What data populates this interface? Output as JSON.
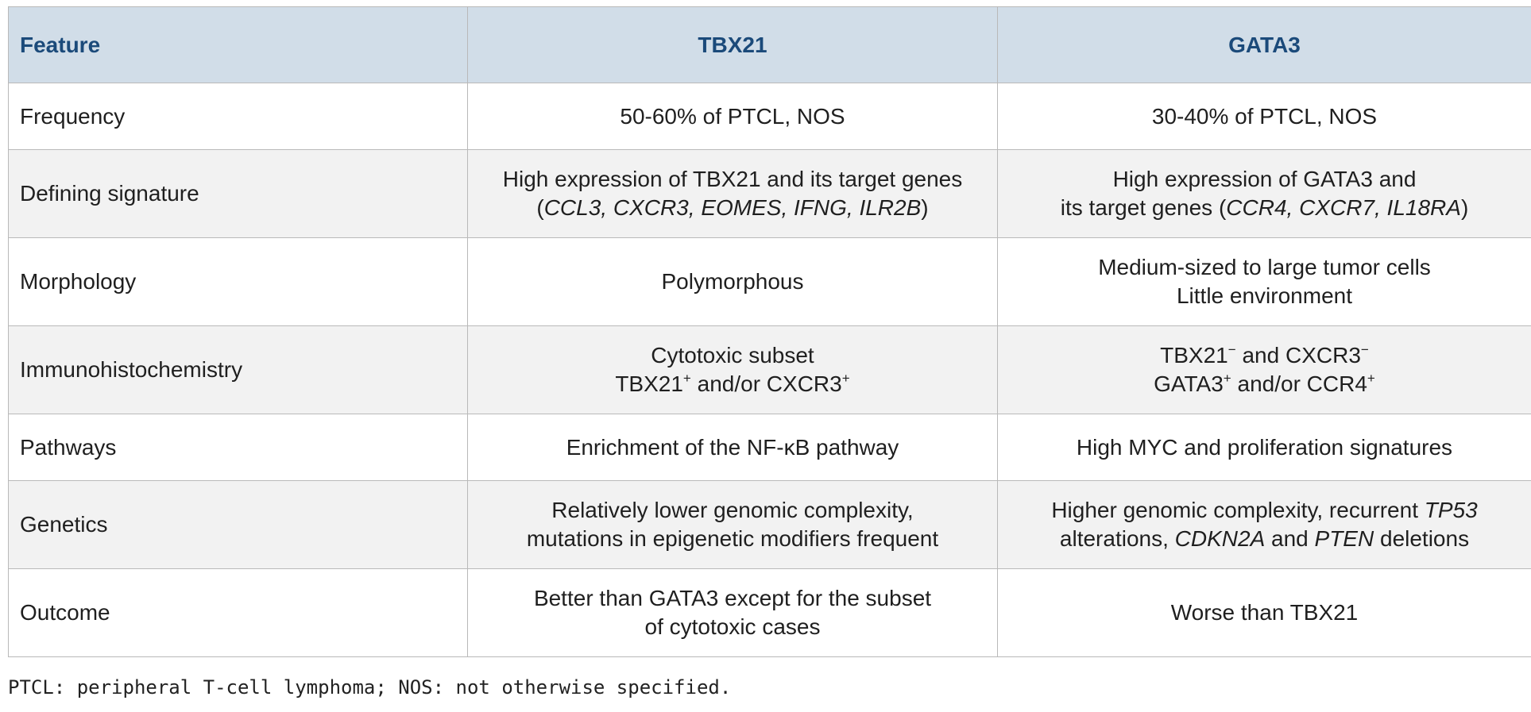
{
  "table": {
    "headers": [
      "Feature",
      "TBX21",
      "GATA3"
    ],
    "rows": [
      {
        "feature": "Frequency",
        "tbx21": {
          "l1": "50-60% of PTCL, NOS"
        },
        "gata3": {
          "l1": "30-40% of PTCL, NOS"
        }
      },
      {
        "feature": "Defining signature",
        "tbx21": {
          "l1": "High expression of TBX21 and its target genes",
          "l2_open": "(",
          "l2_genes": "CCL3, CXCR3, EOMES, IFNG, ILR2B",
          "l2_close": ")"
        },
        "gata3": {
          "l1": "High expression of GATA3 and",
          "l2_pre": "its target genes (",
          "l2_genes": "CCR4, CXCR7, IL18RA",
          "l2_close": ")"
        }
      },
      {
        "feature": "Morphology",
        "tbx21": {
          "l1": "Polymorphous"
        },
        "gata3": {
          "l1": "Medium-sized to large tumor cells",
          "l2": "Little environment"
        }
      },
      {
        "feature": "Immunohistochemistry",
        "tbx21": {
          "l1": "Cytotoxic subset",
          "l2_a": "TBX21",
          "l2_a_sup": "+",
          "l2_mid": " and/or CXCR3",
          "l2_b_sup": "+"
        },
        "gata3": {
          "l1_a": "TBX21",
          "l1_a_sup": "−",
          "l1_mid": " and CXCR3",
          "l1_b_sup": "−",
          "l2_a": "GATA3",
          "l2_a_sup": "+",
          "l2_mid": " and/or CCR4",
          "l2_b_sup": "+"
        }
      },
      {
        "feature": "Pathways",
        "tbx21": {
          "l1": "Enrichment of the NF-κB pathway"
        },
        "gata3": {
          "l1": "High MYC and proliferation signatures"
        }
      },
      {
        "feature": "Genetics",
        "tbx21": {
          "l1": "Relatively lower genomic complexity,",
          "l2": "mutations in epigenetic modifiers frequent"
        },
        "gata3": {
          "l1_pre": "Higher genomic complexity, recurrent ",
          "l1_gene": "TP53",
          "l2_pre": "alterations, ",
          "l2_gene1": "CDKN2A",
          "l2_mid": " and ",
          "l2_gene2": "PTEN",
          "l2_post": " deletions"
        }
      },
      {
        "feature": "Outcome",
        "tbx21": {
          "l1": "Better than GATA3 except for the subset",
          "l2": "of cytotoxic cases"
        },
        "gata3": {
          "l1": "Worse than TBX21"
        }
      }
    ]
  },
  "footnote": "PTCL: peripheral T-cell lymphoma; NOS: not otherwise specified."
}
